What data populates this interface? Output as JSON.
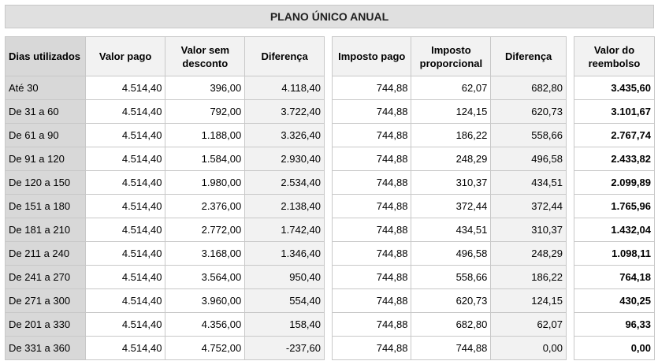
{
  "title": "PLANO ÚNICO ANUAL",
  "table1": {
    "headers": [
      "Dias utilizados",
      "Valor pago",
      "Valor sem desconto",
      "Diferença"
    ],
    "rows": [
      [
        "Até 30",
        "4.514,40",
        "396,00",
        "4.118,40"
      ],
      [
        "De 31 a 60",
        "4.514,40",
        "792,00",
        "3.722,40"
      ],
      [
        "De 61 a 90",
        "4.514,40",
        "1.188,00",
        "3.326,40"
      ],
      [
        "De 91 a 120",
        "4.514,40",
        "1.584,00",
        "2.930,40"
      ],
      [
        "De 120 a 150",
        "4.514,40",
        "1.980,00",
        "2.534,40"
      ],
      [
        "De 151 a 180",
        "4.514,40",
        "2.376,00",
        "2.138,40"
      ],
      [
        "De 181 a 210",
        "4.514,40",
        "2.772,00",
        "1.742,40"
      ],
      [
        "De 211 a 240",
        "4.514,40",
        "3.168,00",
        "1.346,40"
      ],
      [
        "De 241 a 270",
        "4.514,40",
        "3.564,00",
        "950,40"
      ],
      [
        "De 271 a 300",
        "4.514,40",
        "3.960,00",
        "554,40"
      ],
      [
        "De 201 a 330",
        "4.514,40",
        "4.356,00",
        "158,40"
      ],
      [
        "De 331 a 360",
        "4.514,40",
        "4.752,00",
        "-237,60"
      ]
    ]
  },
  "table2": {
    "headers": [
      "Imposto pago",
      "Imposto proporcional",
      "Diferença"
    ],
    "rows": [
      [
        "744,88",
        "62,07",
        "682,80"
      ],
      [
        "744,88",
        "124,15",
        "620,73"
      ],
      [
        "744,88",
        "186,22",
        "558,66"
      ],
      [
        "744,88",
        "248,29",
        "496,58"
      ],
      [
        "744,88",
        "310,37",
        "434,51"
      ],
      [
        "744,88",
        "372,44",
        "372,44"
      ],
      [
        "744,88",
        "434,51",
        "310,37"
      ],
      [
        "744,88",
        "496,58",
        "248,29"
      ],
      [
        "744,88",
        "558,66",
        "186,22"
      ],
      [
        "744,88",
        "620,73",
        "124,15"
      ],
      [
        "744,88",
        "682,80",
        "62,07"
      ],
      [
        "744,88",
        "744,88",
        "0,00"
      ]
    ]
  },
  "table3": {
    "header": "Valor do reembolso",
    "rows": [
      "3.435,60",
      "3.101,67",
      "2.767,74",
      "2.433,82",
      "2.099,89",
      "1.765,96",
      "1.432,04",
      "1.098,11",
      "764,18",
      "430,25",
      "96,33",
      "0,00"
    ]
  }
}
